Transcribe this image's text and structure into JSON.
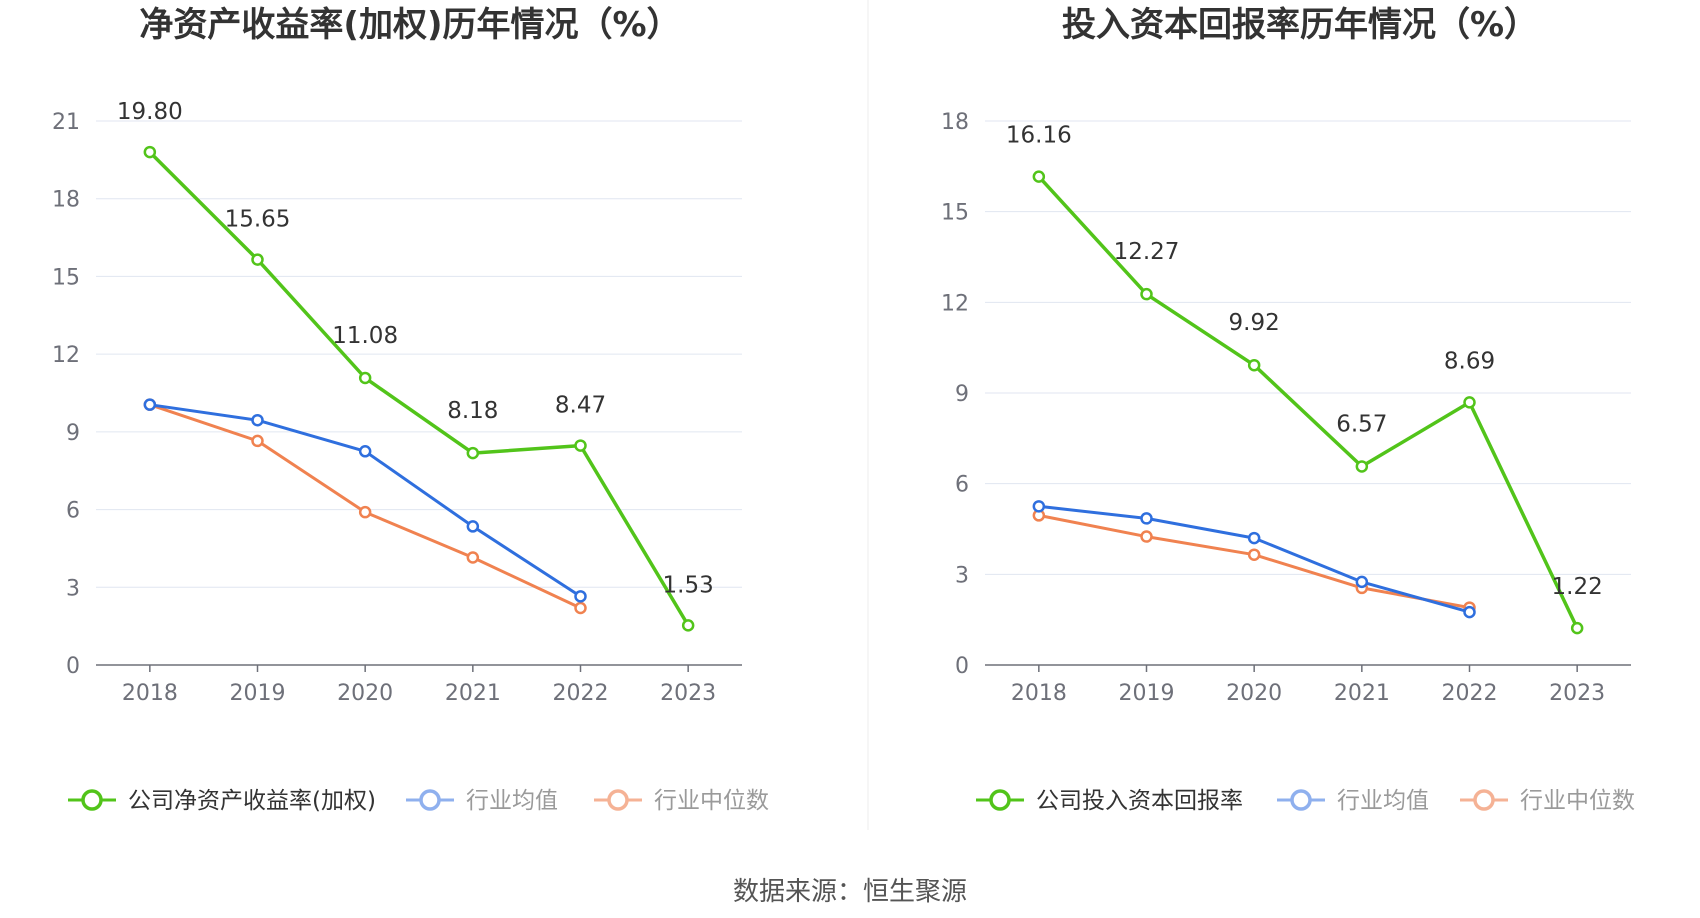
{
  "source_text": "数据来源：恒生聚源",
  "chart_data": [
    {
      "type": "line",
      "title": "净资产收益率(加权)历年情况（%）",
      "categories": [
        "2018",
        "2019",
        "2020",
        "2021",
        "2022",
        "2023"
      ],
      "ylim": [
        0,
        21
      ],
      "yticks": [
        0,
        3,
        6,
        9,
        12,
        15,
        18,
        21
      ],
      "grid": true,
      "legend_position": "bottom",
      "series": [
        {
          "name": "公司净资产收益率(加权)",
          "color": "#52c41a",
          "values": [
            19.8,
            15.65,
            11.08,
            8.18,
            8.47,
            1.53
          ],
          "labels": [
            "19.80",
            "15.65",
            "11.08",
            "8.18",
            "8.47",
            "1.53"
          ]
        },
        {
          "name": "行业均值",
          "color": "#2f6fde",
          "values": [
            10.05,
            9.45,
            8.25,
            5.35,
            2.65,
            null
          ]
        },
        {
          "name": "行业中位数",
          "color": "#f08250",
          "values": [
            10.05,
            8.65,
            5.9,
            4.15,
            2.2,
            null
          ]
        }
      ]
    },
    {
      "type": "line",
      "title": "投入资本回报率历年情况（%）",
      "categories": [
        "2018",
        "2019",
        "2020",
        "2021",
        "2022",
        "2023"
      ],
      "ylim": [
        0,
        18
      ],
      "yticks": [
        0,
        3,
        6,
        9,
        12,
        15,
        18
      ],
      "grid": true,
      "legend_position": "bottom",
      "series": [
        {
          "name": "公司投入资本回报率",
          "color": "#52c41a",
          "values": [
            16.16,
            12.27,
            9.92,
            6.57,
            8.69,
            1.22
          ],
          "labels": [
            "16.16",
            "12.27",
            "9.92",
            "6.57",
            "8.69",
            "1.22"
          ]
        },
        {
          "name": "行业均值",
          "color": "#2f6fde",
          "values": [
            5.25,
            4.85,
            4.2,
            2.75,
            1.75,
            null
          ]
        },
        {
          "name": "行业中位数",
          "color": "#f08250",
          "values": [
            4.95,
            4.25,
            3.65,
            2.55,
            1.9,
            null
          ]
        }
      ]
    }
  ]
}
